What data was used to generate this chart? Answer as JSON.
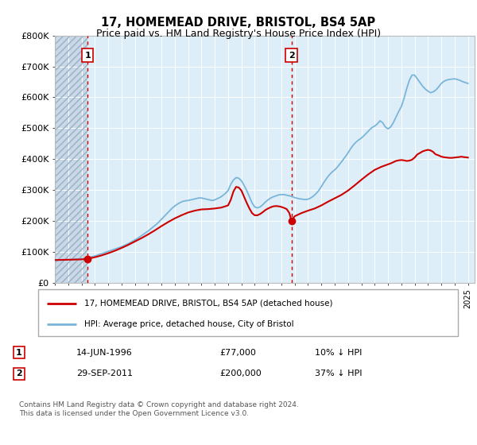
{
  "title": "17, HOMEMEAD DRIVE, BRISTOL, BS4 5AP",
  "subtitle": "Price paid vs. HM Land Registry's House Price Index (HPI)",
  "hpi_color": "#7ab5d9",
  "price_color": "#cc0000",
  "dashed_line_color": "#cc0000",
  "background_plot": "#ddeef8",
  "ylim": [
    0,
    800000
  ],
  "yticks": [
    0,
    100000,
    200000,
    300000,
    400000,
    500000,
    600000,
    700000,
    800000
  ],
  "ytick_labels": [
    "£0",
    "£100K",
    "£200K",
    "£300K",
    "£400K",
    "£500K",
    "£600K",
    "£700K",
    "£800K"
  ],
  "sale1_date": 1996.45,
  "sale1_price": 77000,
  "sale1_label": "1",
  "sale2_date": 2011.75,
  "sale2_price": 200000,
  "sale2_label": "2",
  "legend_line1": "17, HOMEMEAD DRIVE, BRISTOL, BS4 5AP (detached house)",
  "legend_line2": "HPI: Average price, detached house, City of Bristol",
  "annotation1_date": "14-JUN-1996",
  "annotation1_price": "£77,000",
  "annotation1_hpi": "10% ↓ HPI",
  "annotation2_date": "29-SEP-2011",
  "annotation2_price": "£200,000",
  "annotation2_hpi": "37% ↓ HPI",
  "footer": "Contains HM Land Registry data © Crown copyright and database right 2024.\nThis data is licensed under the Open Government Licence v3.0.",
  "xmin": 1994,
  "xmax": 2025.5,
  "hpi_years": [
    1994.0,
    1994.1,
    1994.2,
    1994.3,
    1994.5,
    1994.6,
    1994.8,
    1995.0,
    1995.2,
    1995.4,
    1995.5,
    1995.7,
    1995.9,
    1996.0,
    1996.2,
    1996.4,
    1996.6,
    1996.8,
    1997.0,
    1997.2,
    1997.4,
    1997.6,
    1997.8,
    1998.0,
    1998.2,
    1998.4,
    1998.6,
    1998.8,
    1999.0,
    1999.2,
    1999.4,
    1999.6,
    1999.8,
    2000.0,
    2000.2,
    2000.4,
    2000.6,
    2000.8,
    2001.0,
    2001.2,
    2001.4,
    2001.6,
    2001.8,
    2002.0,
    2002.2,
    2002.4,
    2002.6,
    2002.8,
    2003.0,
    2003.2,
    2003.4,
    2003.6,
    2003.8,
    2004.0,
    2004.2,
    2004.4,
    2004.6,
    2004.8,
    2005.0,
    2005.2,
    2005.4,
    2005.6,
    2005.8,
    2006.0,
    2006.2,
    2006.4,
    2006.6,
    2006.8,
    2007.0,
    2007.2,
    2007.4,
    2007.6,
    2007.8,
    2008.0,
    2008.2,
    2008.4,
    2008.6,
    2008.8,
    2009.0,
    2009.2,
    2009.4,
    2009.6,
    2009.8,
    2010.0,
    2010.2,
    2010.4,
    2010.6,
    2010.8,
    2011.0,
    2011.2,
    2011.4,
    2011.6,
    2011.8,
    2012.0,
    2012.2,
    2012.4,
    2012.6,
    2012.8,
    2013.0,
    2013.2,
    2013.4,
    2013.6,
    2013.8,
    2014.0,
    2014.2,
    2014.4,
    2014.6,
    2014.8,
    2015.0,
    2015.2,
    2015.4,
    2015.6,
    2015.8,
    2016.0,
    2016.2,
    2016.4,
    2016.6,
    2016.8,
    2017.0,
    2017.2,
    2017.4,
    2017.6,
    2017.8,
    2018.0,
    2018.2,
    2018.4,
    2018.6,
    2018.8,
    2019.0,
    2019.2,
    2019.4,
    2019.6,
    2019.8,
    2020.0,
    2020.2,
    2020.4,
    2020.6,
    2020.8,
    2021.0,
    2021.2,
    2021.4,
    2021.6,
    2021.8,
    2022.0,
    2022.2,
    2022.4,
    2022.6,
    2022.8,
    2023.0,
    2023.2,
    2023.4,
    2023.6,
    2023.8,
    2024.0,
    2024.2,
    2024.4,
    2024.6,
    2024.8,
    2025.0
  ],
  "hpi_values": [
    73000,
    72500,
    72000,
    72500,
    73000,
    73500,
    74000,
    74500,
    75000,
    75500,
    76000,
    76500,
    77000,
    77500,
    78500,
    80000,
    82000,
    84000,
    86000,
    89000,
    92000,
    95000,
    98000,
    101000,
    104000,
    107000,
    110000,
    113000,
    116000,
    120000,
    124000,
    128000,
    133000,
    138000,
    143000,
    149000,
    155000,
    161000,
    167000,
    174000,
    181000,
    188000,
    196000,
    205000,
    214000,
    223000,
    232000,
    241000,
    248000,
    254000,
    259000,
    263000,
    265000,
    266000,
    268000,
    270000,
    272000,
    274000,
    274000,
    272000,
    270000,
    268000,
    266000,
    268000,
    272000,
    276000,
    282000,
    289000,
    298000,
    318000,
    332000,
    340000,
    338000,
    330000,
    315000,
    298000,
    278000,
    258000,
    245000,
    242000,
    245000,
    252000,
    261000,
    268000,
    274000,
    278000,
    281000,
    284000,
    285000,
    285000,
    283000,
    281000,
    279000,
    275000,
    273000,
    271000,
    270000,
    269000,
    270000,
    274000,
    280000,
    288000,
    298000,
    311000,
    325000,
    338000,
    349000,
    358000,
    365000,
    374000,
    385000,
    396000,
    408000,
    420000,
    434000,
    446000,
    455000,
    462000,
    468000,
    476000,
    485000,
    494000,
    502000,
    507000,
    514000,
    524000,
    518000,
    504000,
    498000,
    504000,
    518000,
    536000,
    554000,
    570000,
    596000,
    628000,
    655000,
    672000,
    672000,
    660000,
    648000,
    636000,
    627000,
    620000,
    615000,
    618000,
    624000,
    634000,
    645000,
    652000,
    656000,
    658000,
    659000,
    660000,
    658000,
    655000,
    651000,
    648000,
    645000
  ],
  "price_years": [
    1994.0,
    1994.5,
    1995.0,
    1995.5,
    1996.0,
    1996.45,
    1996.5,
    1997.0,
    1997.5,
    1998.0,
    1998.5,
    1999.0,
    1999.5,
    2000.0,
    2000.5,
    2001.0,
    2001.5,
    2002.0,
    2002.5,
    2003.0,
    2003.5,
    2004.0,
    2004.5,
    2005.0,
    2005.5,
    2006.0,
    2006.5,
    2007.0,
    2007.2,
    2007.4,
    2007.6,
    2007.8,
    2008.0,
    2008.2,
    2008.4,
    2008.6,
    2008.8,
    2009.0,
    2009.2,
    2009.4,
    2009.6,
    2009.8,
    2010.0,
    2010.2,
    2010.4,
    2010.6,
    2010.8,
    2011.0,
    2011.2,
    2011.4,
    2011.6,
    2011.75,
    2012.0,
    2012.5,
    2013.0,
    2013.5,
    2014.0,
    2014.5,
    2015.0,
    2015.5,
    2016.0,
    2016.5,
    2017.0,
    2017.5,
    2018.0,
    2018.5,
    2019.0,
    2019.2,
    2019.4,
    2019.6,
    2019.8,
    2020.0,
    2020.2,
    2020.4,
    2020.6,
    2020.8,
    2021.0,
    2021.2,
    2021.4,
    2021.6,
    2021.8,
    2022.0,
    2022.2,
    2022.4,
    2022.5,
    2022.6,
    2022.8,
    2023.0,
    2023.2,
    2023.4,
    2023.6,
    2023.8,
    2024.0,
    2024.2,
    2024.4,
    2024.5,
    2024.6,
    2024.8,
    2025.0
  ],
  "price_values": [
    73000,
    73500,
    74000,
    74500,
    75000,
    77000,
    77500,
    82000,
    88000,
    95000,
    103000,
    112000,
    122000,
    133000,
    144000,
    156000,
    169000,
    183000,
    196000,
    208000,
    218000,
    227000,
    233000,
    237000,
    238000,
    240000,
    243000,
    250000,
    268000,
    295000,
    310000,
    308000,
    298000,
    278000,
    258000,
    240000,
    225000,
    218000,
    218000,
    222000,
    228000,
    235000,
    240000,
    244000,
    247000,
    248000,
    247000,
    245000,
    242000,
    238000,
    225000,
    200000,
    215000,
    225000,
    233000,
    240000,
    250000,
    262000,
    273000,
    284000,
    298000,
    315000,
    333000,
    350000,
    365000,
    375000,
    383000,
    386000,
    390000,
    394000,
    396000,
    397000,
    396000,
    394000,
    395000,
    398000,
    405000,
    415000,
    420000,
    425000,
    428000,
    430000,
    428000,
    423000,
    418000,
    415000,
    412000,
    408000,
    406000,
    405000,
    404000,
    404000,
    405000,
    406000,
    407000,
    408000,
    407000,
    406000,
    405000
  ]
}
